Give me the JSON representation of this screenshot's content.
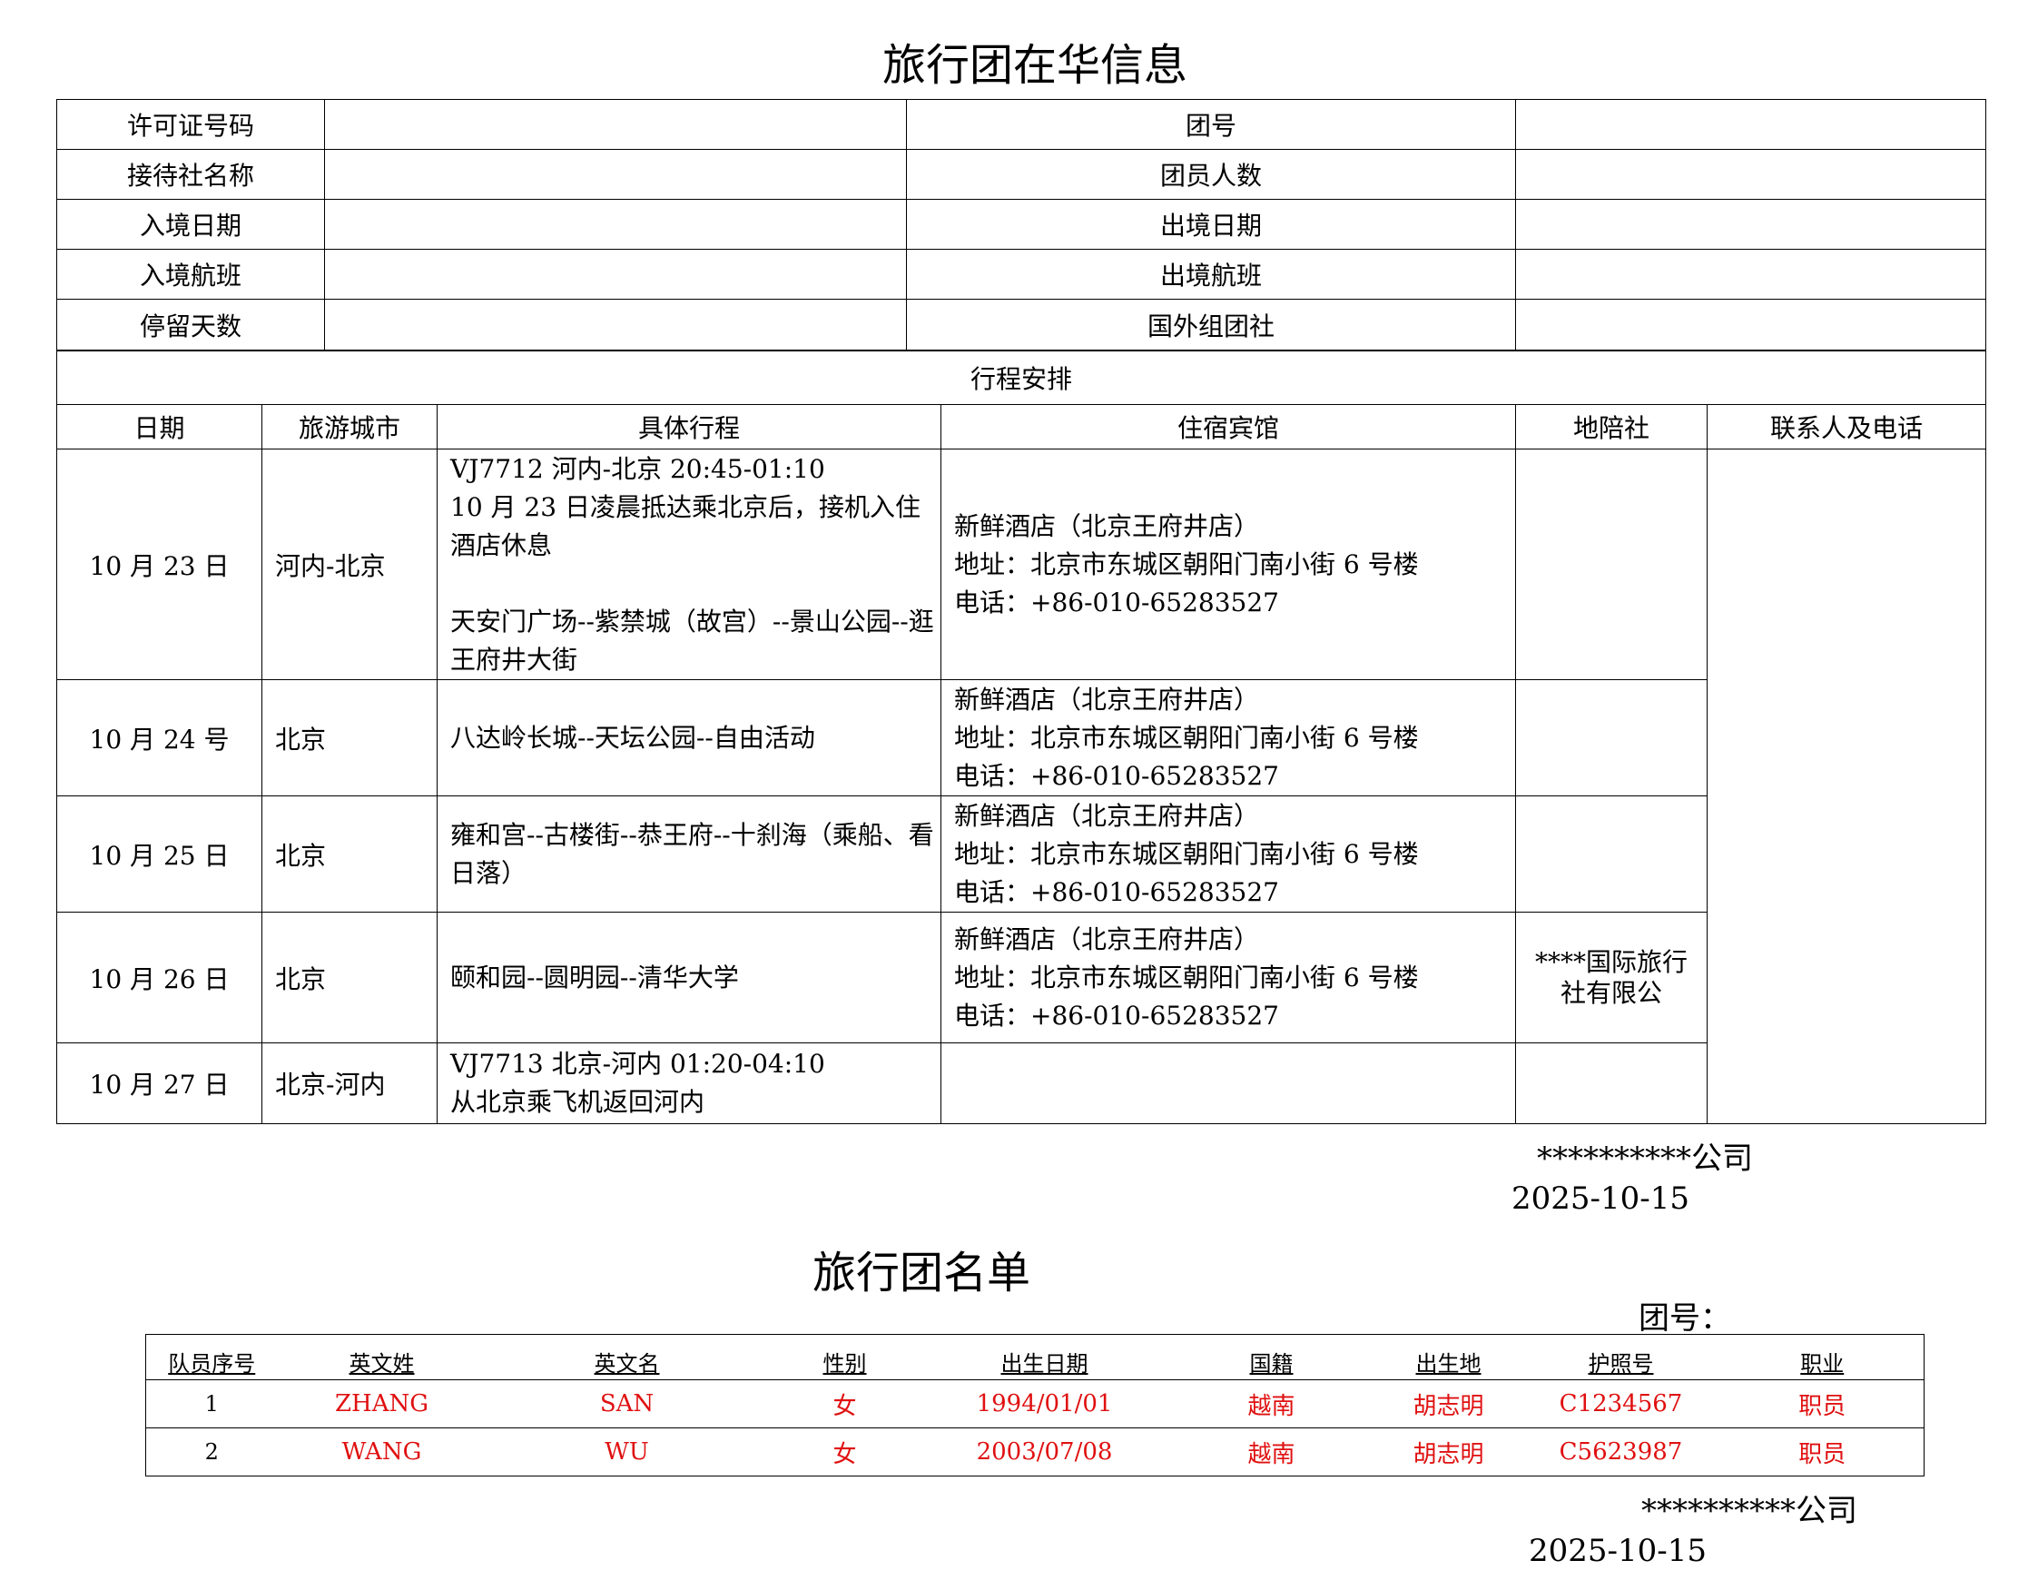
{
  "info": {
    "title": "旅行团在华信息",
    "fields": [
      {
        "left_label": "许可证号码",
        "left_value": "",
        "right_label": "团号",
        "right_value": ""
      },
      {
        "left_label": "接待社名称",
        "left_value": "",
        "right_label": "团员人数",
        "right_value": ""
      },
      {
        "left_label": "入境日期",
        "left_value": "",
        "right_label": "出境日期",
        "right_value": ""
      },
      {
        "left_label": "入境航班",
        "left_value": "",
        "right_label": "出境航班",
        "right_value": ""
      },
      {
        "left_label": "停留天数",
        "left_value": "",
        "right_label": "国外组团社",
        "right_value": ""
      }
    ],
    "itinerary_title": "行程安排",
    "columns": [
      "日期",
      "旅游城市",
      "具体行程",
      "住宿宾馆",
      "地陪社",
      "联系人及电话"
    ],
    "rows": [
      {
        "date": "10 月 23 日",
        "city": "河内-北京",
        "plan": [
          "VJ7712  河内-北京 20:45-01:10",
          "10 月 23 日凌晨抵达乘北京后，接机入住酒店休息",
          "",
          "天安门广场--紫禁城（故宫）--景山公园--逛王府井大街"
        ],
        "hotel": [
          "新鲜酒店（北京王府井店）",
          "地址：北京市东城区朝阳门南小街 6 号楼",
          "电话：+86-010-65283527"
        ],
        "agency": ""
      },
      {
        "date": "10 月 24 号",
        "city": "北京",
        "plan": [
          "八达岭长城--天坛公园--自由活动"
        ],
        "hotel": [
          "新鲜酒店（北京王府井店）",
          "地址：北京市东城区朝阳门南小街 6 号楼",
          "电话：+86-010-65283527"
        ],
        "agency": ""
      },
      {
        "date": "10 月 25 日",
        "city": "北京",
        "plan": [
          "雍和宫--古楼街--恭王府--十刹海（乘船、看日落）"
        ],
        "hotel": [
          "新鲜酒店（北京王府井店）",
          "地址：北京市东城区朝阳门南小街 6 号楼",
          "电话：+86-010-65283527"
        ],
        "agency": ""
      },
      {
        "date": "10 月 26 日",
        "city": "北京",
        "plan": [
          "颐和园--圆明园--清华大学"
        ],
        "hotel": [
          "新鲜酒店（北京王府井店）",
          "地址：北京市东城区朝阳门南小街 6 号楼",
          "电话：+86-010-65283527"
        ],
        "agency": "****国际旅行社有限公"
      },
      {
        "date": "10 月 27 日",
        "city": "北京-河内",
        "plan": [
          "VJ7713  北京-河内  01:20-04:10",
          "从北京乘飞机返回河内"
        ],
        "hotel": [],
        "agency": ""
      }
    ],
    "contact": "",
    "signature_company": "**********公司",
    "signature_date": "2025-10-15"
  },
  "roster": {
    "title": "旅行团名单",
    "group_no_label": "团号：",
    "columns": [
      "队员序号",
      "英文姓",
      "英文名",
      "性别",
      "出生日期",
      "国籍",
      "出生地",
      "护照号",
      "职业"
    ],
    "rows": [
      [
        "1",
        "ZHANG",
        "SAN",
        "女",
        "1994/01/01",
        "越南",
        "胡志明",
        "C1234567",
        "职员"
      ],
      [
        "2",
        "WANG",
        "WU",
        "女",
        "2003/07/08",
        "越南",
        "胡志明",
        "C5623987",
        "职员"
      ]
    ],
    "value_color": "#e01010",
    "signature_company": "**********公司",
    "signature_date": "2025-10-15"
  }
}
